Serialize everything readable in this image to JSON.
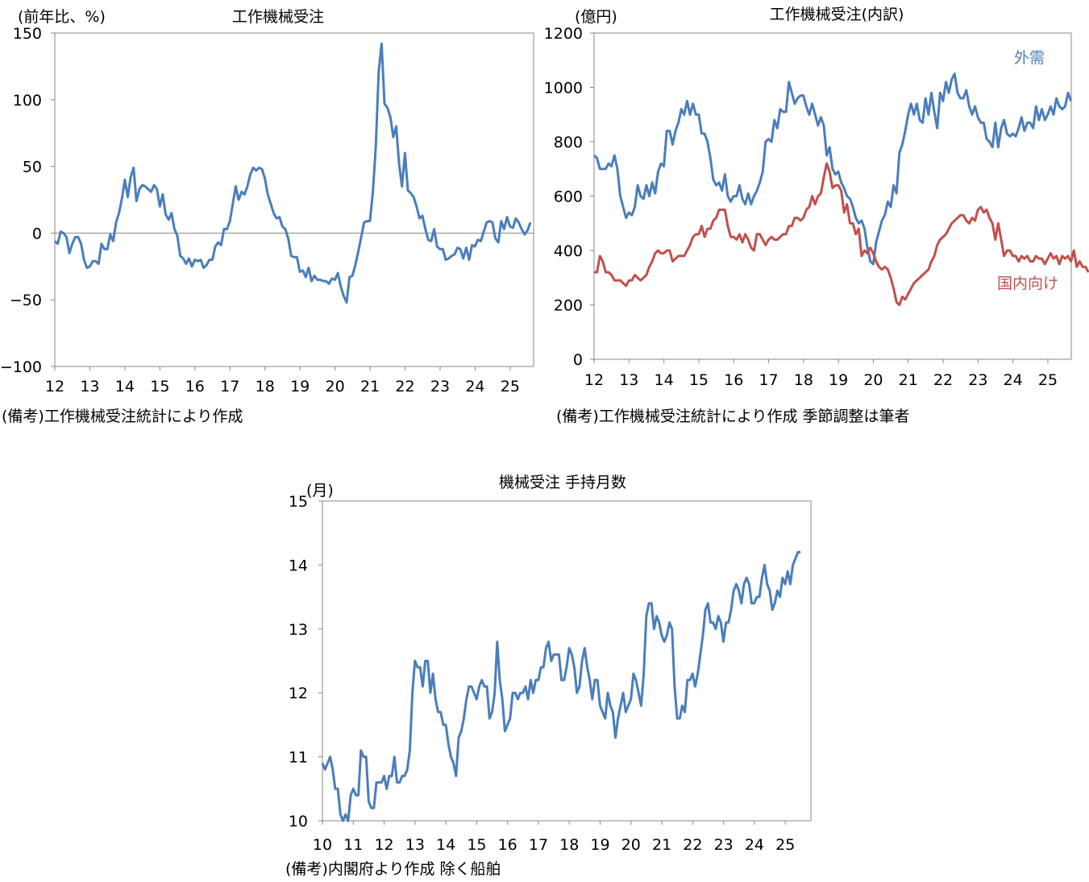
{
  "colors": {
    "blue": "#4A7EBB",
    "red": "#C0504D",
    "frame": "#888888"
  },
  "chart_data": [
    {
      "type": "line",
      "title": "工作機械受注",
      "ylabel": "(前年比、%)",
      "ylim": [
        -100,
        150
      ],
      "yticks": [
        "150",
        "100",
        "50",
        "0",
        "−50",
        "−100"
      ],
      "yticks_values": [
        150,
        100,
        50,
        0,
        -50,
        -100
      ],
      "xticks": [
        "12",
        "13",
        "14",
        "15",
        "16",
        "17",
        "18",
        "19",
        "20",
        "21",
        "22",
        "23",
        "24",
        "25"
      ],
      "xlim": [
        12.0,
        25.67
      ],
      "zero_line": true,
      "note": "(備考)工作機械受注統計により作成",
      "series": [
        {
          "name": "",
          "color": "#4A7EBB",
          "x_start": 12.0,
          "x_step": 0.0833,
          "values": [
            -6,
            -8,
            1,
            0,
            -3,
            -15,
            -8,
            -3,
            -3,
            -8,
            -20,
            -26,
            -25,
            -21,
            -21,
            -23,
            -8,
            -12,
            -12,
            -1,
            -6,
            8,
            15,
            26,
            40,
            27,
            42,
            49,
            24,
            33,
            36,
            35,
            33,
            31,
            36,
            33,
            20,
            29,
            14,
            10,
            15,
            3,
            -2,
            -17,
            -19,
            -23,
            -19,
            -25,
            -20,
            -21,
            -20,
            -26,
            -24,
            -20,
            -20,
            -10,
            -7,
            -9,
            3,
            3,
            9,
            22,
            35,
            25,
            31,
            29,
            35,
            44,
            49,
            47,
            49,
            48,
            41,
            29,
            22,
            15,
            11,
            12,
            5,
            3,
            -4,
            -17,
            -18,
            -18,
            -29,
            -28,
            -33,
            -26,
            -36,
            -32,
            -35,
            -35,
            -36,
            -36,
            -38,
            -34,
            -35,
            -30,
            -40,
            -47,
            -52,
            -33,
            -32,
            -24,
            -14,
            -3,
            8,
            9,
            9,
            30,
            65,
            121,
            142,
            97,
            94,
            87,
            72,
            80,
            52,
            35,
            60,
            32,
            30,
            27,
            20,
            11,
            13,
            3,
            -5,
            -6,
            3,
            -10,
            -12,
            -12,
            -20,
            -19,
            -17,
            -16,
            -11,
            -12,
            -19,
            -11,
            -20,
            -9,
            -10,
            -5,
            -6,
            1,
            8,
            9,
            8,
            -4,
            -7,
            9,
            3,
            12,
            5,
            4,
            11,
            8,
            3,
            -1,
            2,
            8
          ]
        }
      ]
    },
    {
      "type": "line",
      "title": "工作機械受注(内訳)",
      "ylabel": "(億円)",
      "ylim": [
        0,
        1200
      ],
      "yticks": [
        "1200",
        "1000",
        "800",
        "600",
        "400",
        "200",
        "0"
      ],
      "yticks_values": [
        1200,
        1000,
        800,
        600,
        400,
        200,
        0
      ],
      "xticks": [
        "12",
        "13",
        "14",
        "15",
        "16",
        "17",
        "18",
        "19",
        "20",
        "21",
        "22",
        "23",
        "24",
        "25"
      ],
      "xlim": [
        12.0,
        25.67
      ],
      "note": "(備考)工作機械受注統計により作成 季節調整は筆者",
      "series": [
        {
          "name": "外需",
          "color": "#4A7EBB",
          "x_start": 12.0,
          "x_step": 0.0833,
          "values": [
            750,
            740,
            700,
            700,
            700,
            720,
            710,
            750,
            700,
            600,
            560,
            520,
            540,
            530,
            560,
            640,
            600,
            590,
            640,
            600,
            650,
            610,
            690,
            720,
            710,
            840,
            840,
            790,
            840,
            870,
            920,
            900,
            950,
            900,
            940,
            900,
            900,
            830,
            830,
            800,
            740,
            660,
            640,
            650,
            620,
            680,
            600,
            580,
            600,
            600,
            640,
            590,
            570,
            610,
            570,
            600,
            620,
            650,
            690,
            800,
            810,
            800,
            880,
            850,
            920,
            910,
            910,
            1020,
            980,
            940,
            960,
            970,
            970,
            930,
            900,
            940,
            900,
            860,
            890,
            860,
            750,
            780,
            700,
            680,
            690,
            650,
            630,
            600,
            590,
            560,
            520,
            500,
            510,
            480,
            410,
            360,
            350,
            430,
            470,
            510,
            530,
            580,
            560,
            640,
            610,
            760,
            790,
            840,
            900,
            940,
            900,
            940,
            880,
            870,
            960,
            900,
            980,
            910,
            850,
            980,
            950,
            1020,
            980,
            1030,
            1050,
            980,
            960,
            960,
            990,
            930,
            900,
            930,
            890,
            870,
            870,
            810,
            800,
            780,
            870,
            780,
            850,
            880,
            830,
            820,
            830,
            820,
            850,
            890,
            840,
            870,
            870,
            850,
            930,
            880,
            920,
            880,
            900,
            930,
            900,
            960,
            930,
            920,
            930,
            980,
            950
          ]
        },
        {
          "name": "国内向け",
          "color": "#C0504D",
          "x_start": 12.0,
          "x_step": 0.0833,
          "values": [
            320,
            320,
            380,
            360,
            320,
            320,
            310,
            290,
            290,
            290,
            280,
            270,
            290,
            290,
            310,
            300,
            290,
            300,
            310,
            340,
            360,
            390,
            400,
            390,
            390,
            400,
            400,
            360,
            370,
            380,
            380,
            380,
            400,
            420,
            450,
            460,
            460,
            490,
            450,
            480,
            480,
            510,
            520,
            550,
            550,
            550,
            490,
            450,
            450,
            440,
            460,
            430,
            460,
            440,
            410,
            400,
            460,
            460,
            440,
            420,
            440,
            450,
            440,
            440,
            450,
            460,
            460,
            490,
            490,
            520,
            520,
            510,
            520,
            550,
            560,
            600,
            570,
            600,
            610,
            670,
            720,
            690,
            630,
            640,
            640,
            620,
            540,
            570,
            500,
            500,
            460,
            480,
            380,
            400,
            390,
            410,
            390,
            360,
            340,
            330,
            340,
            330,
            300,
            260,
            210,
            200,
            230,
            220,
            240,
            260,
            280,
            290,
            300,
            310,
            320,
            330,
            360,
            380,
            420,
            440,
            450,
            460,
            480,
            500,
            510,
            520,
            530,
            530,
            510,
            500,
            520,
            510,
            550,
            560,
            540,
            550,
            520,
            500,
            440,
            500,
            440,
            380,
            400,
            400,
            380,
            380,
            360,
            380,
            370,
            380,
            360,
            360,
            380,
            370,
            370,
            350,
            370,
            390,
            370,
            380,
            350,
            380,
            370,
            380,
            360,
            400,
            340,
            360,
            340,
            340,
            320
          ]
        }
      ]
    },
    {
      "type": "line",
      "title": "機械受注 手持月数",
      "ylabel": "(月)",
      "ylim": [
        10,
        15
      ],
      "yticks": [
        "15",
        "14",
        "13",
        "12",
        "11",
        "10"
      ],
      "yticks_values": [
        15,
        14,
        13,
        12,
        11,
        10
      ],
      "xticks": [
        "10",
        "11",
        "12",
        "13",
        "14",
        "15",
        "16",
        "17",
        "18",
        "19",
        "20",
        "21",
        "22",
        "23",
        "24",
        "25"
      ],
      "xlim": [
        10.0,
        25.83
      ],
      "note": "(備考)内閣府より作成 除く船舶",
      "series": [
        {
          "name": "",
          "color": "#4A7EBB",
          "x_start": 10.0,
          "x_step": 0.0833,
          "values": [
            10.9,
            10.8,
            10.9,
            11.0,
            10.8,
            10.5,
            10.5,
            10.1,
            9.9,
            10.1,
            10.0,
            10.4,
            10.5,
            10.4,
            10.4,
            11.1,
            11.0,
            11.0,
            10.3,
            10.2,
            10.2,
            10.6,
            10.6,
            10.6,
            10.7,
            10.5,
            10.7,
            10.7,
            11.0,
            10.6,
            10.6,
            10.7,
            10.7,
            10.8,
            11.1,
            12.0,
            12.5,
            12.4,
            12.4,
            12.1,
            12.5,
            12.5,
            12.0,
            12.3,
            11.9,
            11.7,
            11.7,
            11.5,
            11.5,
            11.2,
            11.0,
            10.9,
            10.7,
            11.3,
            11.4,
            11.6,
            11.9,
            12.1,
            12.1,
            12.0,
            11.9,
            12.1,
            12.2,
            12.1,
            12.1,
            11.6,
            11.7,
            12.0,
            12.8,
            12.2,
            11.9,
            11.4,
            11.5,
            11.6,
            12.0,
            12.0,
            11.9,
            12.0,
            12.0,
            12.1,
            11.9,
            12.2,
            12.0,
            12.2,
            12.2,
            12.4,
            12.4,
            12.7,
            12.8,
            12.5,
            12.6,
            12.6,
            12.6,
            12.2,
            12.2,
            12.4,
            12.7,
            12.6,
            12.4,
            12.0,
            12.1,
            12.5,
            12.7,
            12.4,
            12.2,
            11.9,
            12.2,
            12.2,
            11.8,
            11.7,
            11.6,
            12.0,
            11.8,
            11.7,
            11.3,
            11.6,
            11.8,
            12.0,
            11.7,
            11.8,
            11.9,
            12.3,
            12.2,
            12.0,
            11.8,
            12.3,
            13.2,
            13.4,
            13.4,
            13.0,
            13.2,
            13.1,
            12.9,
            12.8,
            12.9,
            13.1,
            13.0,
            12.1,
            11.6,
            11.6,
            11.8,
            11.7,
            12.2,
            12.2,
            12.3,
            12.1,
            12.3,
            12.6,
            12.9,
            13.3,
            13.4,
            13.1,
            13.1,
            13.0,
            13.2,
            13.1,
            12.8,
            13.1,
            13.1,
            13.3,
            13.6,
            13.7,
            13.6,
            13.4,
            13.7,
            13.8,
            13.7,
            13.4,
            13.4,
            13.5,
            13.5,
            13.8,
            14.0,
            13.7,
            13.6,
            13.3,
            13.4,
            13.6,
            13.5,
            13.8,
            13.7,
            13.9,
            13.7,
            14.0,
            14.1,
            14.2,
            14.2
          ]
        }
      ]
    }
  ]
}
